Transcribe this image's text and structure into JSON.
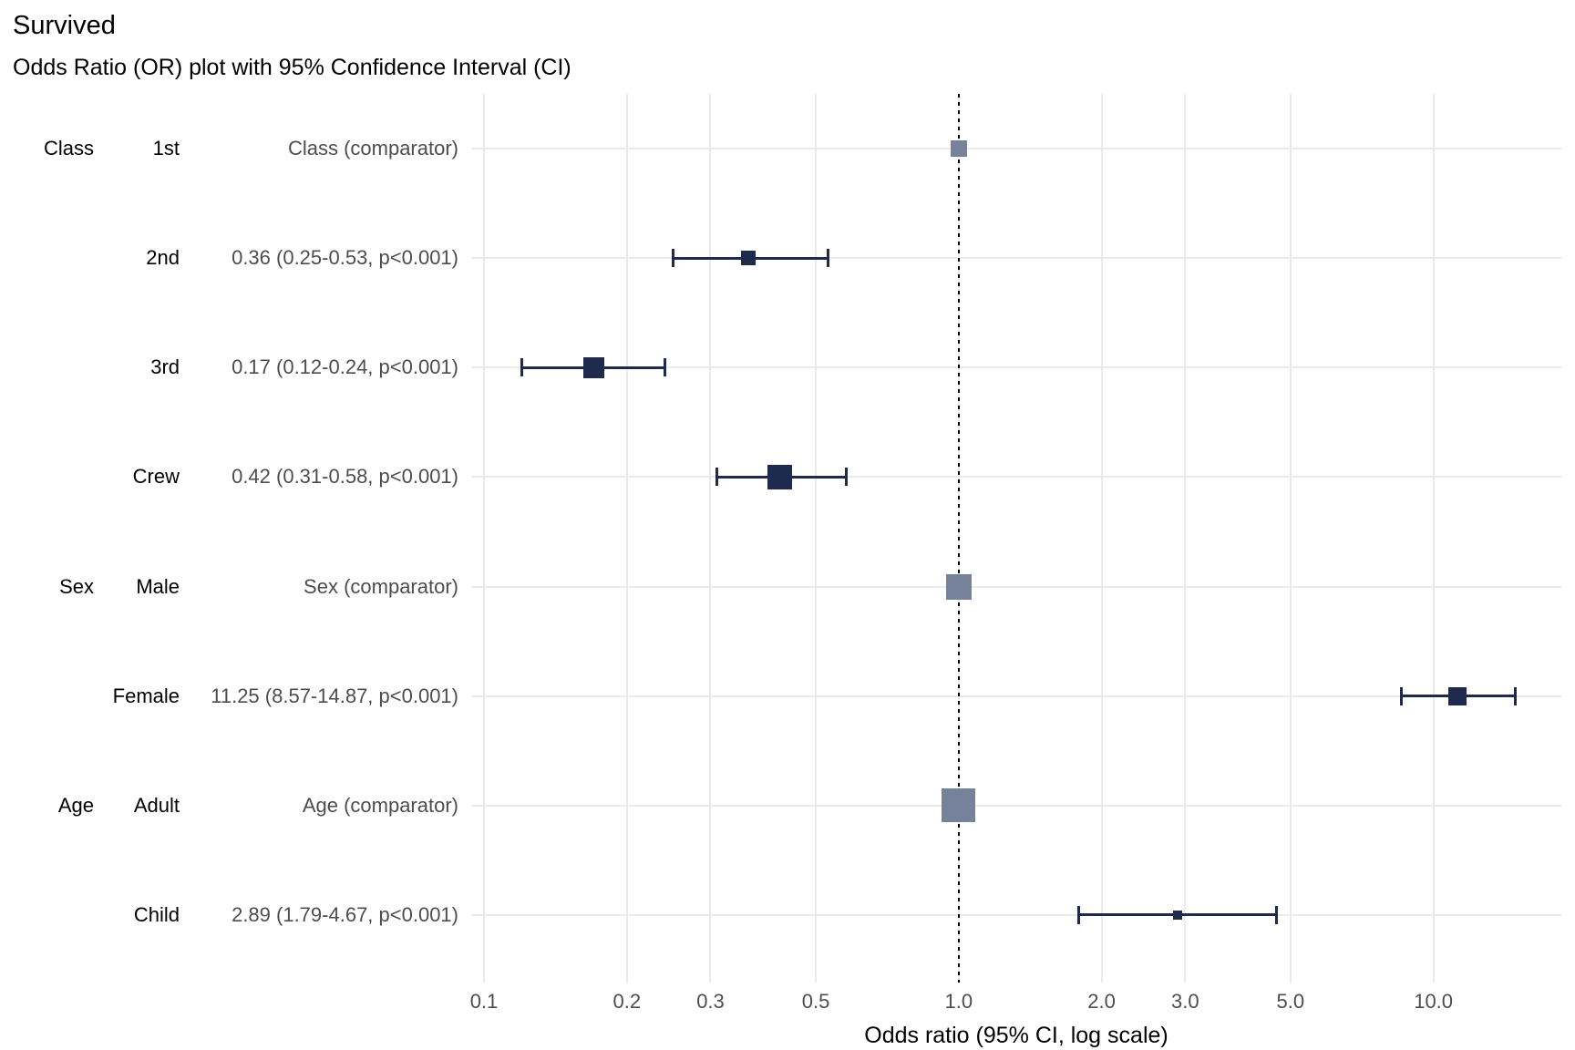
{
  "chart_data": {
    "type": "scatter",
    "subtype": "forest-plot",
    "title": "Survived",
    "subtitle": "Odds Ratio (OR) plot with 95% Confidence Interval (CI)",
    "xlabel": "Odds ratio (95% CI, log scale)",
    "x_scale": "log10",
    "xlim": [
      0.094,
      18.6
    ],
    "reference_line": 1.0,
    "x_ticks": [
      0.1,
      0.2,
      0.3,
      0.5,
      1.0,
      2.0,
      3.0,
      5.0,
      10.0
    ],
    "x_tick_labels": [
      "0.1",
      "0.2",
      "0.3",
      "0.5",
      "1.0",
      "2.0",
      "3.0",
      "5.0",
      "10.0"
    ],
    "grid": true,
    "rows": [
      {
        "group": "Class",
        "level": "1st",
        "annotation": "Class (comparator)",
        "or": 1.0,
        "lo": null,
        "hi": null,
        "comparator": true,
        "marker_size": 18
      },
      {
        "group": "",
        "level": "2nd",
        "annotation": "0.36 (0.25-0.53, p<0.001)",
        "or": 0.36,
        "lo": 0.25,
        "hi": 0.53,
        "comparator": false,
        "marker_size": 16
      },
      {
        "group": "",
        "level": "3rd",
        "annotation": "0.17 (0.12-0.24, p<0.001)",
        "or": 0.17,
        "lo": 0.12,
        "hi": 0.24,
        "comparator": false,
        "marker_size": 23
      },
      {
        "group": "",
        "level": "Crew",
        "annotation": "0.42 (0.31-0.58, p<0.001)",
        "or": 0.42,
        "lo": 0.31,
        "hi": 0.58,
        "comparator": false,
        "marker_size": 27
      },
      {
        "group": "Sex",
        "level": "Male",
        "annotation": "Sex (comparator)",
        "or": 1.0,
        "lo": null,
        "hi": null,
        "comparator": true,
        "marker_size": 28
      },
      {
        "group": "",
        "level": "Female",
        "annotation": "11.25 (8.57-14.87, p<0.001)",
        "or": 11.25,
        "lo": 8.57,
        "hi": 14.87,
        "comparator": false,
        "marker_size": 20
      },
      {
        "group": "Age",
        "level": "Adult",
        "annotation": "Age (comparator)",
        "or": 1.0,
        "lo": null,
        "hi": null,
        "comparator": true,
        "marker_size": 37
      },
      {
        "group": "",
        "level": "Child",
        "annotation": "2.89 (1.79-4.67, p<0.001)",
        "or": 2.89,
        "lo": 1.79,
        "hi": 4.67,
        "comparator": false,
        "marker_size": 10
      }
    ],
    "colors": {
      "estimate": "#1F2A4F",
      "comparator": "#75829A",
      "ci": "#1F2A4F",
      "gridline": "#EBEBEB",
      "reference": "#000000",
      "group_text": "#000000",
      "level_text": "#000000",
      "annotation_text": "#4D4D4D",
      "tick_text": "#4D4D4D",
      "axis_title_text": "#000000"
    },
    "legend": "none"
  }
}
